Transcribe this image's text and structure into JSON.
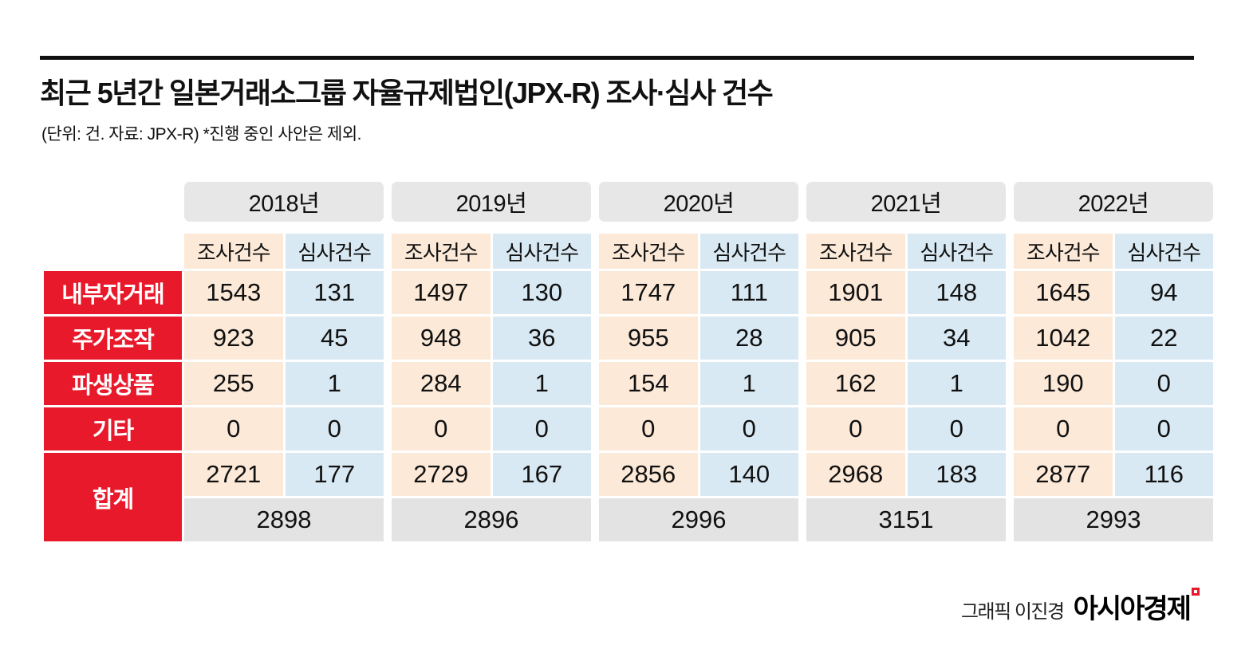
{
  "header": {
    "title": "최근 5년간 일본거래소그룹 자율규제법인(JPX-R) 조사·심사 건수",
    "subtitle": "(단위: 건. 자료: JPX-R)  *진행 중인 사안은 제외."
  },
  "chart_data": {
    "type": "table",
    "title": "최근 5년간 일본거래소그룹 자율규제법인(JPX-R) 조사·심사 건수",
    "unit_note": "(단위: 건. 자료: JPX-R)  *진행 중인 사안은 제외.",
    "years": [
      "2018년",
      "2019년",
      "2020년",
      "2021년",
      "2022년"
    ],
    "sub_columns": [
      "조사건수",
      "심사건수"
    ],
    "row_labels": [
      "내부자거래",
      "주가조작",
      "파생상품",
      "기타",
      "합계"
    ],
    "rows": [
      {
        "label": "내부자거래",
        "cells": [
          "1543",
          "131",
          "1497",
          "130",
          "1747",
          "111",
          "1901",
          "148",
          "1645",
          "94"
        ]
      },
      {
        "label": "주가조작",
        "cells": [
          "923",
          "45",
          "948",
          "36",
          "955",
          "28",
          "905",
          "34",
          "1042",
          "22"
        ]
      },
      {
        "label": "파생상품",
        "cells": [
          "255",
          "1",
          "284",
          "1",
          "154",
          "1",
          "162",
          "1",
          "190",
          "0"
        ]
      },
      {
        "label": "기타",
        "cells": [
          "0",
          "0",
          "0",
          "0",
          "0",
          "0",
          "0",
          "0",
          "0",
          "0"
        ]
      }
    ],
    "total": {
      "label": "합계",
      "cells": [
        "2721",
        "177",
        "2729",
        "167",
        "2856",
        "140",
        "2968",
        "183",
        "2877",
        "116"
      ],
      "combined": [
        "2898",
        "2896",
        "2996",
        "3151",
        "2993"
      ]
    }
  },
  "footer": {
    "credit": "그래픽 이진경",
    "brand": "아시아경제"
  },
  "colors": {
    "accent_red": "#e8192b",
    "investigation_peach": "#fce9d8",
    "examination_blue": "#d9e9f3",
    "year_header_gray": "#e7e7e7",
    "combined_total_gray": "#e3e3e3",
    "rule_black": "#111111"
  }
}
